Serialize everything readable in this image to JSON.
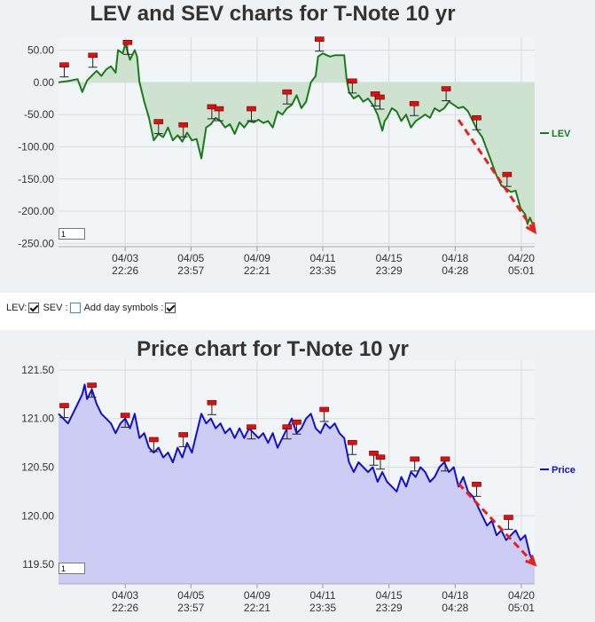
{
  "controls": {
    "lev_label": "LEV:",
    "sev_label": "SEV :",
    "day_symbols_label": "Add day symbols :",
    "lev_checked": true,
    "sev_checked": false,
    "day_symbols_checked": true
  },
  "chart_data": [
    {
      "type": "area",
      "title": "LEV and SEV charts for T-Note 10 yr",
      "ylim": [
        -255,
        70
      ],
      "yticks": [
        50,
        0,
        -50,
        -100,
        -150,
        -200,
        -250
      ],
      "ytick_labels": [
        "50.00",
        "0.00",
        "-50.00",
        "-100.00",
        "-150.00",
        "-200.00",
        "-250.00"
      ],
      "xticks": [
        {
          "x": 0.14,
          "line1": "04/03",
          "line2": "22:26"
        },
        {
          "x": 0.278,
          "line1": "04/05",
          "line2": "23:57"
        },
        {
          "x": 0.417,
          "line1": "04/09",
          "line2": "22:21"
        },
        {
          "x": 0.555,
          "line1": "04/11",
          "line2": "23:35"
        },
        {
          "x": 0.694,
          "line1": "04/15",
          "line2": "23:29"
        },
        {
          "x": 0.833,
          "line1": "04/18",
          "line2": "04:28"
        },
        {
          "x": 0.972,
          "line1": "04/20",
          "line2": "05:01"
        }
      ],
      "series": [
        {
          "name": "LEV",
          "color": "#1a7a1a",
          "fill": "#cde3cf",
          "points": [
            [
              0,
              0
            ],
            [
              0.02,
              2
            ],
            [
              0.04,
              5
            ],
            [
              0.05,
              -15
            ],
            [
              0.06,
              3
            ],
            [
              0.08,
              18
            ],
            [
              0.09,
              10
            ],
            [
              0.1,
              20
            ],
            [
              0.11,
              25
            ],
            [
              0.12,
              15
            ],
            [
              0.125,
              50
            ],
            [
              0.135,
              45
            ],
            [
              0.14,
              60
            ],
            [
              0.15,
              35
            ],
            [
              0.16,
              50
            ],
            [
              0.165,
              40
            ],
            [
              0.17,
              0
            ],
            [
              0.18,
              -30
            ],
            [
              0.19,
              -55
            ],
            [
              0.2,
              -90
            ],
            [
              0.21,
              -80
            ],
            [
              0.22,
              -85
            ],
            [
              0.23,
              -70
            ],
            [
              0.24,
              -90
            ],
            [
              0.25,
              -82
            ],
            [
              0.26,
              -92
            ],
            [
              0.27,
              -78
            ],
            [
              0.28,
              -90
            ],
            [
              0.29,
              -88
            ],
            [
              0.3,
              -118
            ],
            [
              0.31,
              -70
            ],
            [
              0.32,
              -65
            ],
            [
              0.33,
              -55
            ],
            [
              0.34,
              -60
            ],
            [
              0.35,
              -70
            ],
            [
              0.36,
              -65
            ],
            [
              0.37,
              -80
            ],
            [
              0.38,
              -62
            ],
            [
              0.39,
              -70
            ],
            [
              0.4,
              -60
            ],
            [
              0.41,
              -62
            ],
            [
              0.42,
              -58
            ],
            [
              0.43,
              -63
            ],
            [
              0.44,
              -60
            ],
            [
              0.45,
              -70
            ],
            [
              0.46,
              -45
            ],
            [
              0.47,
              -50
            ],
            [
              0.48,
              -40
            ],
            [
              0.49,
              -35
            ],
            [
              0.5,
              -20
            ],
            [
              0.51,
              -40
            ],
            [
              0.52,
              -30
            ],
            [
              0.53,
              0
            ],
            [
              0.54,
              10
            ],
            [
              0.545,
              40
            ],
            [
              0.555,
              45
            ],
            [
              0.57,
              40
            ],
            [
              0.58,
              42
            ],
            [
              0.6,
              42
            ],
            [
              0.605,
              5
            ],
            [
              0.61,
              -15
            ],
            [
              0.62,
              -25
            ],
            [
              0.63,
              -20
            ],
            [
              0.64,
              -30
            ],
            [
              0.65,
              -25
            ],
            [
              0.66,
              -35
            ],
            [
              0.67,
              -50
            ],
            [
              0.68,
              -75
            ],
            [
              0.685,
              -60
            ],
            [
              0.69,
              -55
            ],
            [
              0.7,
              -40
            ],
            [
              0.71,
              -45
            ],
            [
              0.72,
              -60
            ],
            [
              0.73,
              -50
            ],
            [
              0.74,
              -70
            ],
            [
              0.75,
              -60
            ],
            [
              0.76,
              -55
            ],
            [
              0.77,
              -50
            ],
            [
              0.78,
              -55
            ],
            [
              0.79,
              -40
            ],
            [
              0.8,
              -45
            ],
            [
              0.81,
              -40
            ],
            [
              0.82,
              -30
            ],
            [
              0.83,
              -35
            ],
            [
              0.84,
              -40
            ],
            [
              0.85,
              -38
            ],
            [
              0.86,
              -45
            ],
            [
              0.87,
              -60
            ],
            [
              0.88,
              -75
            ],
            [
              0.89,
              -85
            ],
            [
              0.9,
              -105
            ],
            [
              0.91,
              -125
            ],
            [
              0.92,
              -145
            ],
            [
              0.93,
              -160
            ],
            [
              0.94,
              -165
            ],
            [
              0.95,
              -170
            ],
            [
              0.96,
              -168
            ],
            [
              0.97,
              -195
            ],
            [
              0.98,
              -205
            ],
            [
              0.985,
              -220
            ],
            [
              0.99,
              -210
            ],
            [
              1,
              -228
            ]
          ]
        }
      ],
      "markers": [
        [
          0.012,
          25
        ],
        [
          0.072,
          40
        ],
        [
          0.145,
          60
        ],
        [
          0.21,
          -63
        ],
        [
          0.262,
          -68
        ],
        [
          0.322,
          -40
        ],
        [
          0.337,
          -43
        ],
        [
          0.405,
          -43
        ],
        [
          0.48,
          -17
        ],
        [
          0.548,
          65
        ],
        [
          0.617,
          0
        ],
        [
          0.665,
          -20
        ],
        [
          0.675,
          -25
        ],
        [
          0.747,
          -35
        ],
        [
          0.814,
          -12
        ],
        [
          0.878,
          -57
        ],
        [
          0.942,
          -145
        ]
      ],
      "trend_arrow": {
        "from": [
          0.84,
          -58
        ],
        "to": [
          1.0,
          -232
        ],
        "color": "#e8201c"
      },
      "legend": "LEV",
      "legend_position": "right"
    },
    {
      "type": "area",
      "title": "Price chart for T-Note 10 yr",
      "ylim": [
        119.3,
        121.6
      ],
      "yticks": [
        121.5,
        121.0,
        120.5,
        120.0,
        119.5
      ],
      "ytick_labels": [
        "121.50",
        "121.00",
        "120.50",
        "120.00",
        "119.50"
      ],
      "xticks": [
        {
          "x": 0.14,
          "line1": "04/03",
          "line2": "22:26"
        },
        {
          "x": 0.278,
          "line1": "04/05",
          "line2": "23:57"
        },
        {
          "x": 0.417,
          "line1": "04/09",
          "line2": "22:21"
        },
        {
          "x": 0.555,
          "line1": "04/11",
          "line2": "23:35"
        },
        {
          "x": 0.694,
          "line1": "04/15",
          "line2": "23:29"
        },
        {
          "x": 0.833,
          "line1": "04/18",
          "line2": "04:28"
        },
        {
          "x": 0.972,
          "line1": "04/20",
          "line2": "05:01"
        }
      ],
      "series": [
        {
          "name": "Price",
          "color": "#1010d0",
          "fill": "#ccccf5",
          "points": [
            [
              0,
              121.05
            ],
            [
              0.02,
              120.95
            ],
            [
              0.03,
              121.05
            ],
            [
              0.04,
              121.15
            ],
            [
              0.05,
              121.25
            ],
            [
              0.055,
              121.35
            ],
            [
              0.06,
              121.2
            ],
            [
              0.07,
              121.3
            ],
            [
              0.08,
              121.15
            ],
            [
              0.09,
              121.05
            ],
            [
              0.1,
              121.0
            ],
            [
              0.11,
              120.95
            ],
            [
              0.12,
              120.85
            ],
            [
              0.13,
              120.95
            ],
            [
              0.14,
              121.0
            ],
            [
              0.15,
              120.9
            ],
            [
              0.16,
              121.05
            ],
            [
              0.17,
              120.8
            ],
            [
              0.18,
              120.85
            ],
            [
              0.19,
              120.7
            ],
            [
              0.2,
              120.65
            ],
            [
              0.21,
              120.7
            ],
            [
              0.22,
              120.6
            ],
            [
              0.23,
              120.65
            ],
            [
              0.24,
              120.55
            ],
            [
              0.25,
              120.7
            ],
            [
              0.26,
              120.6
            ],
            [
              0.27,
              120.75
            ],
            [
              0.28,
              120.65
            ],
            [
              0.29,
              120.85
            ],
            [
              0.3,
              121.05
            ],
            [
              0.31,
              120.95
            ],
            [
              0.32,
              121.0
            ],
            [
              0.33,
              120.9
            ],
            [
              0.34,
              120.95
            ],
            [
              0.35,
              120.85
            ],
            [
              0.36,
              120.9
            ],
            [
              0.37,
              120.8
            ],
            [
              0.38,
              120.9
            ],
            [
              0.39,
              120.8
            ],
            [
              0.4,
              120.9
            ],
            [
              0.41,
              120.85
            ],
            [
              0.42,
              120.8
            ],
            [
              0.43,
              120.85
            ],
            [
              0.44,
              120.75
            ],
            [
              0.45,
              120.85
            ],
            [
              0.46,
              120.7
            ],
            [
              0.47,
              120.8
            ],
            [
              0.48,
              120.9
            ],
            [
              0.49,
              121.0
            ],
            [
              0.5,
              120.85
            ],
            [
              0.51,
              120.9
            ],
            [
              0.52,
              121.0
            ],
            [
              0.53,
              121.05
            ],
            [
              0.54,
              120.9
            ],
            [
              0.55,
              120.85
            ],
            [
              0.56,
              120.95
            ],
            [
              0.57,
              120.9
            ],
            [
              0.58,
              120.95
            ],
            [
              0.59,
              120.85
            ],
            [
              0.6,
              120.8
            ],
            [
              0.61,
              120.55
            ],
            [
              0.62,
              120.45
            ],
            [
              0.63,
              120.55
            ],
            [
              0.64,
              120.5
            ],
            [
              0.65,
              120.45
            ],
            [
              0.66,
              120.5
            ],
            [
              0.67,
              120.35
            ],
            [
              0.68,
              120.45
            ],
            [
              0.69,
              120.35
            ],
            [
              0.7,
              120.3
            ],
            [
              0.71,
              120.25
            ],
            [
              0.72,
              120.4
            ],
            [
              0.73,
              120.3
            ],
            [
              0.74,
              120.45
            ],
            [
              0.75,
              120.4
            ],
            [
              0.76,
              120.5
            ],
            [
              0.77,
              120.45
            ],
            [
              0.78,
              120.35
            ],
            [
              0.79,
              120.4
            ],
            [
              0.8,
              120.5
            ],
            [
              0.81,
              120.55
            ],
            [
              0.82,
              120.45
            ],
            [
              0.83,
              120.5
            ],
            [
              0.84,
              120.3
            ],
            [
              0.85,
              120.4
            ],
            [
              0.86,
              120.25
            ],
            [
              0.87,
              120.2
            ],
            [
              0.88,
              120.1
            ],
            [
              0.89,
              120.0
            ],
            [
              0.9,
              119.9
            ],
            [
              0.91,
              119.95
            ],
            [
              0.92,
              119.8
            ],
            [
              0.93,
              119.85
            ],
            [
              0.94,
              119.75
            ],
            [
              0.95,
              119.8
            ],
            [
              0.96,
              119.85
            ],
            [
              0.97,
              119.75
            ],
            [
              0.98,
              119.8
            ],
            [
              0.99,
              119.6
            ],
            [
              1,
              119.5
            ]
          ]
        }
      ],
      "markers": [
        [
          0.012,
          121.12
        ],
        [
          0.07,
          121.33
        ],
        [
          0.14,
          121.02
        ],
        [
          0.2,
          120.77
        ],
        [
          0.262,
          120.82
        ],
        [
          0.322,
          121.15
        ],
        [
          0.405,
          120.9
        ],
        [
          0.48,
          120.9
        ],
        [
          0.5,
          120.95
        ],
        [
          0.558,
          121.08
        ],
        [
          0.617,
          120.74
        ],
        [
          0.662,
          120.63
        ],
        [
          0.676,
          120.59
        ],
        [
          0.748,
          120.57
        ],
        [
          0.812,
          120.57
        ],
        [
          0.878,
          120.31
        ],
        [
          0.945,
          119.97
        ]
      ],
      "trend_arrow": {
        "from": [
          0.84,
          120.33
        ],
        "to": [
          1.0,
          119.5
        ],
        "color": "#e8201c"
      },
      "legend": "Price",
      "legend_position": "right"
    }
  ],
  "zoom_boxes": [
    "1",
    "1"
  ]
}
